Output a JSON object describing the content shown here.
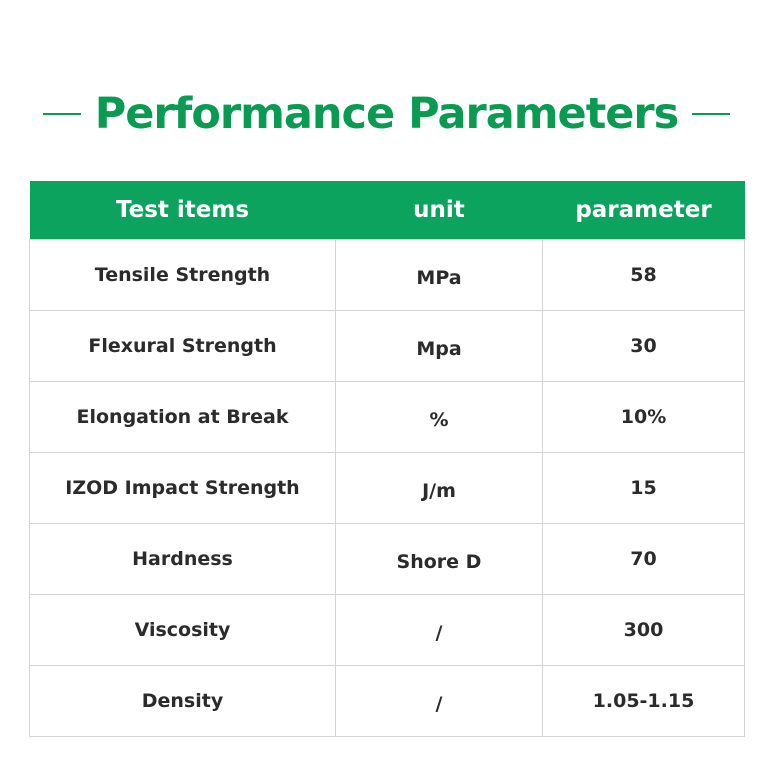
{
  "title": "Performance Parameters",
  "colors": {
    "accent": "#0a9a52",
    "header_bg": "#0ba35d",
    "grid": "#d4d4d4",
    "text": "#2b2b2b"
  },
  "table": {
    "headers": [
      "Test items",
      "unit",
      "parameter"
    ],
    "rows": [
      [
        "Tensile Strength",
        "MPa",
        "58"
      ],
      [
        "Flexural Strength",
        "Mpa",
        "30"
      ],
      [
        "Elongation at Break",
        "%",
        "10%"
      ],
      [
        "IZOD Impact Strength",
        "J/m",
        "15"
      ],
      [
        "Hardness",
        "Shore D",
        "70"
      ],
      [
        "Viscosity",
        "/",
        "300"
      ],
      [
        "Density",
        "/",
        "1.05-1.15"
      ]
    ]
  }
}
